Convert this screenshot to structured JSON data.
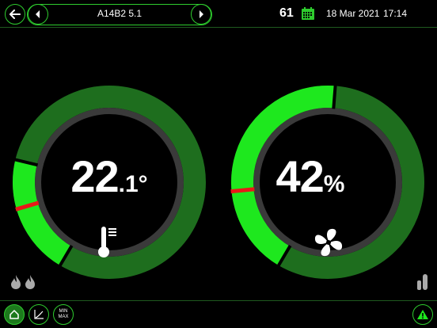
{
  "header": {
    "nav_title": "A14B2 5.1",
    "count": "61",
    "date": "18 Mar 2021",
    "time": "17:14"
  },
  "gauges": {
    "temperature": {
      "value_main": "22",
      "value_decimal": ".1",
      "unit": "°",
      "fill_fraction": 0.55,
      "setpoint_fraction": 0.44
    },
    "humidity": {
      "value_main": "42",
      "unit": "%",
      "fill_fraction": 0.85,
      "setpoint_fraction": 0.48
    }
  },
  "footer": {
    "minmax_top": "MIN",
    "minmax_bottom": "MAX"
  },
  "colors": {
    "accent": "#2ecc2e",
    "gauge_bright": "#1ee81e",
    "gauge_dark": "#1e6e1e",
    "setpoint": "#e81818",
    "background": "#000000"
  },
  "icons": {
    "back": "back-arrow-icon",
    "prev": "chevron-left-icon",
    "next": "chevron-right-icon",
    "calendar": "calendar-icon",
    "thermometer": "thermometer-icon",
    "fan": "fan-icon",
    "flames": "flame-icon",
    "bar": "bar-level-icon",
    "home": "home-icon",
    "chart": "chart-icon",
    "warning": "warning-icon"
  }
}
